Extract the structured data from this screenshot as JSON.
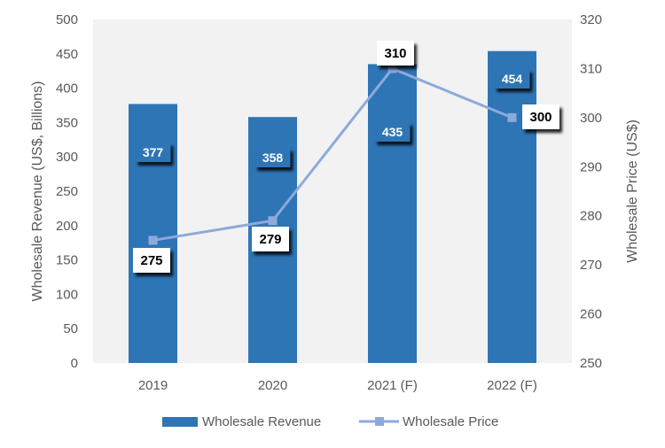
{
  "chart_data": {
    "type": "bar+line",
    "categories": [
      "2019",
      "2020",
      "2021 (F)",
      "2022 (F)"
    ],
    "series": [
      {
        "name": "Wholesale Revenue",
        "type": "bar",
        "axis": "left",
        "values": [
          377,
          358,
          435,
          454
        ],
        "color": "#2E75B6"
      },
      {
        "name": "Wholesale Price",
        "type": "line",
        "axis": "right",
        "values": [
          275,
          279,
          310,
          300
        ],
        "color": "#8EA9DB"
      }
    ],
    "y_left": {
      "label": "Wholesale Revenue (US$, Billions)",
      "min": 0,
      "max": 500,
      "step": 50
    },
    "y_right": {
      "label": "Wholesale Price (US$)",
      "min": 250,
      "max": 320,
      "step": 10
    },
    "legend_position": "bottom",
    "grid": false,
    "plot_background": "#F2F2F2"
  }
}
